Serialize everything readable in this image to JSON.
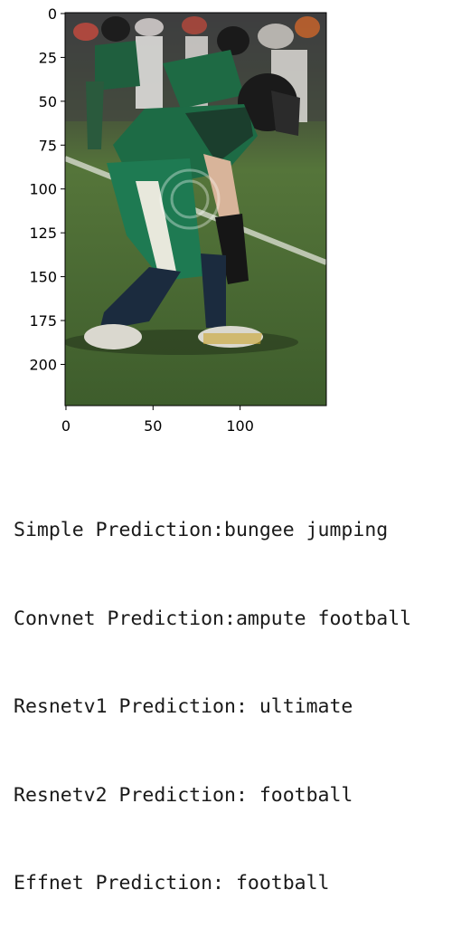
{
  "chart_data": {
    "type": "image",
    "title": "",
    "xlabel": "",
    "ylabel": "",
    "xlim": [
      -0.5,
      149.5
    ],
    "ylim": [
      223.5,
      -0.5
    ],
    "x_ticks": [
      0,
      50,
      100
    ],
    "y_ticks": [
      0,
      25,
      50,
      75,
      100,
      125,
      150,
      175,
      200
    ],
    "image": {
      "subject": "football player in green and white uniform in a crouched stance on a grass field",
      "watermark_present": true,
      "colors": {
        "grass": "#4a6b2f",
        "jersey": "#1f6b46",
        "helmet": "#1b1b1b",
        "crowd": "#3a3a3a"
      }
    }
  },
  "output": {
    "lines": [
      "Simple Prediction:bungee jumping",
      "Convnet Prediction:ampute football",
      "Resnetv1 Prediction: ultimate",
      "Resnetv2 Prediction: football",
      "Effnet Prediction: football"
    ]
  }
}
